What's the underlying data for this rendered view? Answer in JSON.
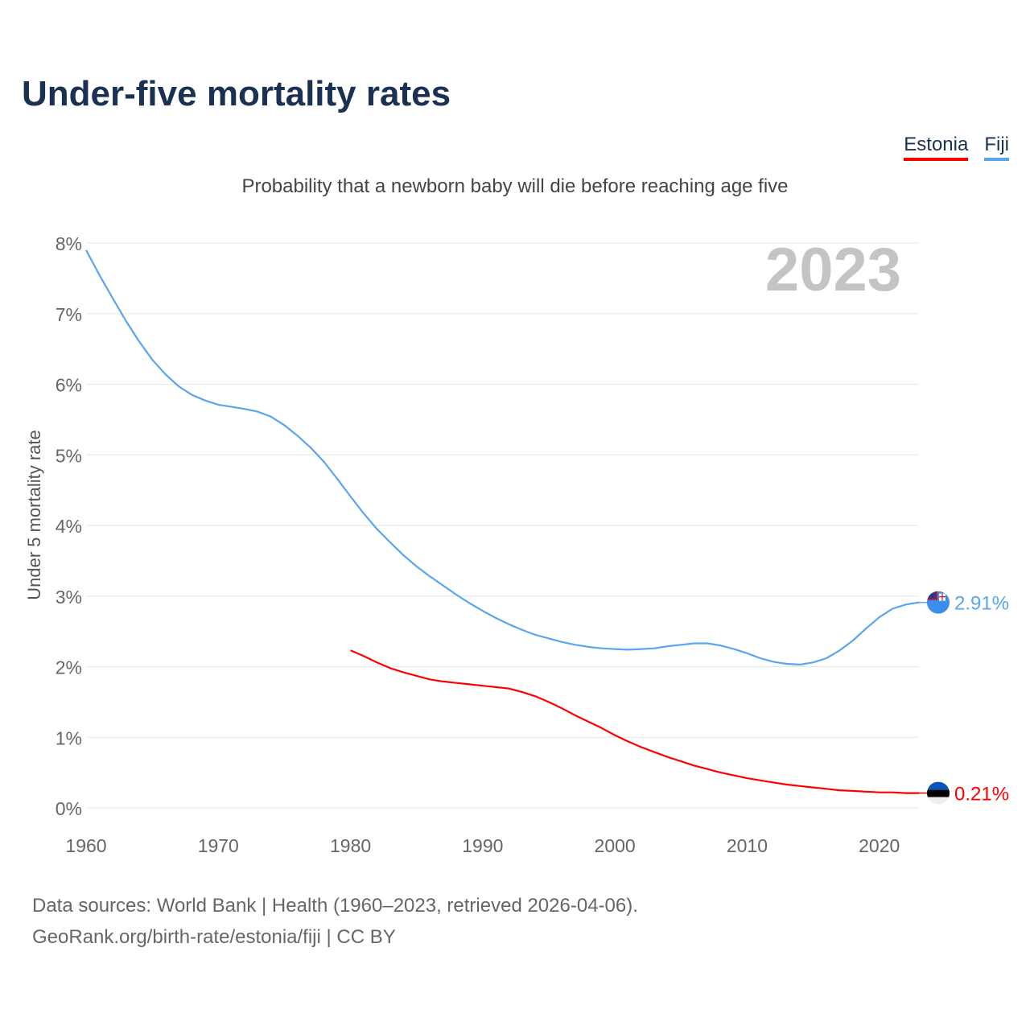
{
  "title": "Under-five mortality rates",
  "subtitle": "Probability that a newborn baby will die before reaching age five",
  "legend": [
    {
      "label": "Estonia",
      "color": "#ff0000"
    },
    {
      "label": "Fiji",
      "color": "#5aa5ee"
    }
  ],
  "source_line1": "Data sources: World Bank | Health (1960–2023, retrieved 2026-04-06).",
  "source_line2": "GeoRank.org/birth-rate/estonia/fiji | CC BY",
  "chart_data": {
    "type": "line",
    "title": "Under-five mortality rates",
    "subtitle": "Probability that a newborn baby will die before reaching age five",
    "xlabel": "",
    "ylabel": "Under 5 mortality rate",
    "year_watermark": "2023",
    "xlim": [
      1960,
      2023
    ],
    "ylim": [
      0,
      8
    ],
    "x_ticks": [
      1960,
      1970,
      1980,
      1990,
      2000,
      2010,
      2020
    ],
    "y_ticks": [
      "0%",
      "1%",
      "2%",
      "3%",
      "4%",
      "5%",
      "6%",
      "7%",
      "8%"
    ],
    "grid": true,
    "legend_position": "top-right",
    "series": [
      {
        "name": "Fiji",
        "color": "#5aa5ee",
        "end_label": "2.91%",
        "flag": "fiji-flag",
        "x": [
          1960,
          1961,
          1962,
          1963,
          1964,
          1965,
          1966,
          1967,
          1968,
          1969,
          1970,
          1971,
          1972,
          1973,
          1974,
          1975,
          1976,
          1977,
          1978,
          1979,
          1980,
          1981,
          1982,
          1983,
          1984,
          1985,
          1986,
          1987,
          1988,
          1989,
          1990,
          1991,
          1992,
          1993,
          1994,
          1995,
          1996,
          1997,
          1998,
          1999,
          2000,
          2001,
          2002,
          2003,
          2004,
          2005,
          2006,
          2007,
          2008,
          2009,
          2010,
          2011,
          2012,
          2013,
          2014,
          2015,
          2016,
          2017,
          2018,
          2019,
          2020,
          2021,
          2022,
          2023
        ],
        "values": [
          7.9,
          7.55,
          7.22,
          6.9,
          6.61,
          6.35,
          6.14,
          5.97,
          5.85,
          5.77,
          5.71,
          5.68,
          5.65,
          5.61,
          5.54,
          5.42,
          5.27,
          5.1,
          4.9,
          4.66,
          4.41,
          4.17,
          3.95,
          3.76,
          3.58,
          3.42,
          3.28,
          3.15,
          3.02,
          2.9,
          2.79,
          2.69,
          2.6,
          2.52,
          2.45,
          2.4,
          2.35,
          2.31,
          2.28,
          2.26,
          2.25,
          2.24,
          2.25,
          2.26,
          2.29,
          2.31,
          2.33,
          2.33,
          2.3,
          2.25,
          2.19,
          2.12,
          2.07,
          2.04,
          2.03,
          2.06,
          2.12,
          2.23,
          2.37,
          2.54,
          2.7,
          2.82,
          2.88,
          2.91
        ]
      },
      {
        "name": "Estonia",
        "color": "#ff0000",
        "end_label": "0.21%",
        "flag": "estonia-flag",
        "x": [
          1980,
          1981,
          1982,
          1983,
          1984,
          1985,
          1986,
          1987,
          1988,
          1989,
          1990,
          1991,
          1992,
          1993,
          1994,
          1995,
          1996,
          1997,
          1998,
          1999,
          2000,
          2001,
          2002,
          2003,
          2004,
          2005,
          2006,
          2007,
          2008,
          2009,
          2010,
          2011,
          2012,
          2013,
          2014,
          2015,
          2016,
          2017,
          2018,
          2019,
          2020,
          2021,
          2022,
          2023
        ],
        "values": [
          2.23,
          2.15,
          2.06,
          1.98,
          1.92,
          1.87,
          1.82,
          1.79,
          1.77,
          1.75,
          1.73,
          1.71,
          1.69,
          1.64,
          1.58,
          1.5,
          1.41,
          1.31,
          1.22,
          1.13,
          1.03,
          0.94,
          0.86,
          0.79,
          0.72,
          0.66,
          0.6,
          0.55,
          0.5,
          0.46,
          0.42,
          0.39,
          0.36,
          0.33,
          0.31,
          0.29,
          0.27,
          0.25,
          0.24,
          0.23,
          0.22,
          0.22,
          0.21,
          0.21
        ]
      }
    ]
  }
}
